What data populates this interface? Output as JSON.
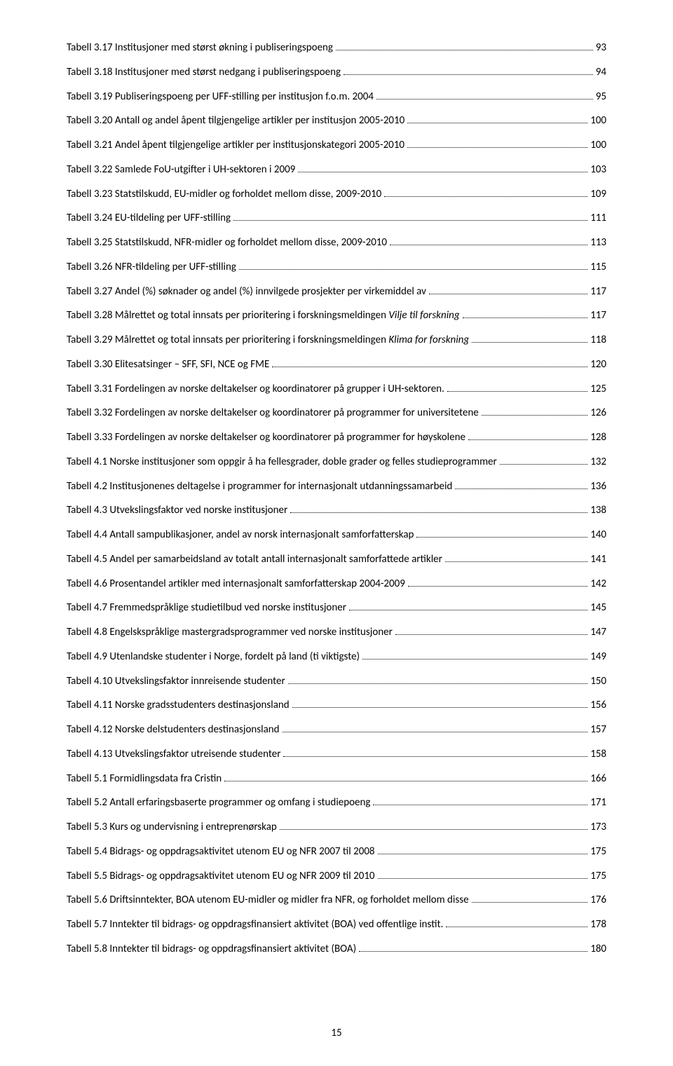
{
  "toc": [
    {
      "title_prefix": "Tabell 3.17 Institusjoner med størst økning i publiseringspoeng",
      "title_italic": "",
      "page": "93"
    },
    {
      "title_prefix": "Tabell 3.18 Institusjoner med størst nedgang i publiseringspoeng",
      "title_italic": "",
      "page": "94"
    },
    {
      "title_prefix": "Tabell 3.19 Publiseringspoeng per UFF-stilling per institusjon f.o.m. 2004",
      "title_italic": "",
      "page": "95"
    },
    {
      "title_prefix": "Tabell 3.20 Antall og andel åpent tilgjengelige artikler per institusjon 2005-2010",
      "title_italic": "",
      "page": "100"
    },
    {
      "title_prefix": "Tabell 3.21 Andel åpent tilgjengelige artikler per institusjonskategori 2005-2010",
      "title_italic": "",
      "page": "100"
    },
    {
      "title_prefix": "Tabell 3.22 Samlede FoU-utgifter i UH-sektoren i 2009",
      "title_italic": "",
      "page": "103"
    },
    {
      "title_prefix": "Tabell 3.23 Statstilskudd, EU-midler og forholdet mellom disse, 2009-2010",
      "title_italic": "",
      "page": "109"
    },
    {
      "title_prefix": "Tabell 3.24 EU-tildeling per UFF-stilling",
      "title_italic": "",
      "page": "111"
    },
    {
      "title_prefix": "Tabell 3.25 Statstilskudd, NFR-midler og forholdet mellom disse, 2009-2010",
      "title_italic": "",
      "page": "113"
    },
    {
      "title_prefix": "Tabell 3.26 NFR-tildeling per UFF-stilling",
      "title_italic": "",
      "page": "115"
    },
    {
      "title_prefix": "Tabell 3.27 Andel (%) søknader og andel (%) innvilgede prosjekter per virkemiddel av",
      "title_italic": "",
      "page": "117"
    },
    {
      "title_prefix": "Tabell 3.28 Målrettet og total innsats per prioritering i forskningsmeldingen ",
      "title_italic": "Vilje til forskning",
      "page": "117"
    },
    {
      "title_prefix": "Tabell 3.29 Målrettet og total innsats per prioritering i forskningsmeldingen ",
      "title_italic": "Klima for forskning",
      "page": "118"
    },
    {
      "title_prefix": "Tabell 3.30 Elitesatsinger – SFF, SFI, NCE og FME",
      "title_italic": "",
      "page": "120"
    },
    {
      "title_prefix": "Tabell 3.31 Fordelingen av norske deltakelser og koordinatorer på grupper i UH-sektoren.",
      "title_italic": "",
      "page": "125"
    },
    {
      "title_prefix": "Tabell 3.32 Fordelingen av norske deltakelser og koordinatorer på programmer for universitetene",
      "title_italic": "",
      "page": "126"
    },
    {
      "title_prefix": "Tabell 3.33 Fordelingen av norske deltakelser og koordinatorer på programmer for høyskolene",
      "title_italic": "",
      "page": "128"
    },
    {
      "title_prefix": "Tabell 4.1 Norske institusjoner som oppgir å ha fellesgrader, doble grader og felles studieprogrammer",
      "title_italic": "",
      "page": "132"
    },
    {
      "title_prefix": "Tabell 4.2 Institusjonenes deltagelse i programmer for internasjonalt utdanningssamarbeid",
      "title_italic": "",
      "page": "136"
    },
    {
      "title_prefix": "Tabell 4.3 Utvekslingsfaktor ved norske institusjoner",
      "title_italic": "",
      "page": "138"
    },
    {
      "title_prefix": "Tabell 4.4 Antall sampublikasjoner, andel av norsk internasjonalt samforfatterskap",
      "title_italic": "",
      "page": "140"
    },
    {
      "title_prefix": "Tabell 4.5 Andel per samarbeidsland av totalt antall internasjonalt samforfattede artikler",
      "title_italic": "",
      "page": "141"
    },
    {
      "title_prefix": "Tabell 4.6 Prosentandel artikler med internasjonalt samforfatterskap 2004-2009",
      "title_italic": "",
      "page": "142"
    },
    {
      "title_prefix": "Tabell 4.7 Fremmedspråklige studietilbud ved norske institusjoner",
      "title_italic": "",
      "page": "145"
    },
    {
      "title_prefix": "Tabell 4.8 Engelskspråklige mastergradsprogrammer ved norske institusjoner",
      "title_italic": "",
      "page": "147"
    },
    {
      "title_prefix": "Tabell 4.9 Utenlandske studenter i Norge, fordelt på land (ti viktigste)",
      "title_italic": "",
      "page": "149"
    },
    {
      "title_prefix": "Tabell 4.10 Utvekslingsfaktor innreisende studenter",
      "title_italic": "",
      "page": "150"
    },
    {
      "title_prefix": "Tabell 4.11 Norske gradsstudenters destinasjonsland",
      "title_italic": "",
      "page": "156"
    },
    {
      "title_prefix": "Tabell 4.12 Norske delstudenters destinasjonsland",
      "title_italic": "",
      "page": "157"
    },
    {
      "title_prefix": "Tabell 4.13 Utvekslingsfaktor utreisende studenter",
      "title_italic": "",
      "page": "158"
    },
    {
      "title_prefix": "Tabell 5.1 Formidlingsdata fra Cristin",
      "title_italic": "",
      "page": "166"
    },
    {
      "title_prefix": "Tabell 5.2 Antall erfaringsbaserte programmer og omfang i studiepoeng",
      "title_italic": "",
      "page": "171"
    },
    {
      "title_prefix": "Tabell 5.3 Kurs og undervisning i entreprenørskap",
      "title_italic": "",
      "page": "173"
    },
    {
      "title_prefix": "Tabell 5.4 Bidrags- og oppdragsaktivitet utenom EU og NFR 2007 til 2008",
      "title_italic": "",
      "page": "175"
    },
    {
      "title_prefix": "Tabell 5.5 Bidrags- og oppdragsaktivitet utenom EU og NFR 2009 til 2010",
      "title_italic": "",
      "page": "175"
    },
    {
      "title_prefix": "Tabell 5.6 Driftsinntekter, BOA utenom EU-midler og midler fra NFR, og forholdet mellom disse",
      "title_italic": "",
      "page": "176"
    },
    {
      "title_prefix": "Tabell 5.7 Inntekter til bidrags- og oppdragsfinansiert aktivitet (BOA) ved offentlige instit.",
      "title_italic": "",
      "page": "178"
    },
    {
      "title_prefix": "Tabell 5.8 Inntekter til bidrags- og oppdragsfinansiert aktivitet (BOA)",
      "title_italic": "",
      "page": "180"
    }
  ],
  "page_number": "15"
}
